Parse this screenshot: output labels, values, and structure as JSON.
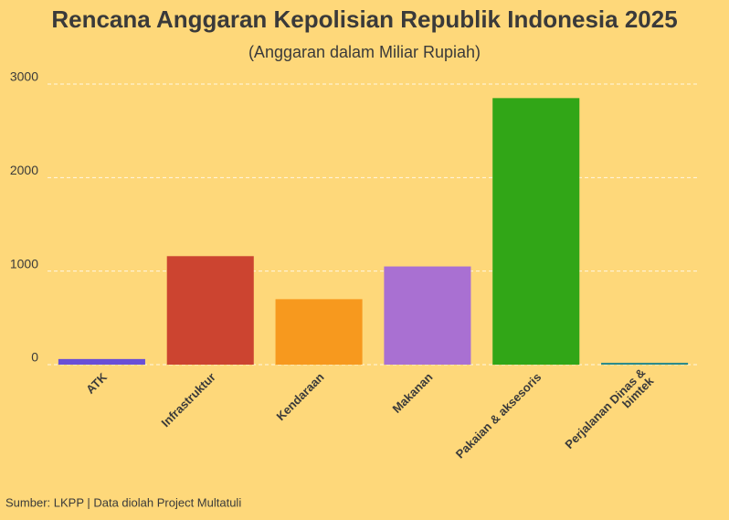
{
  "chart_data": {
    "type": "bar",
    "title": "Rencana Anggaran Kepolisian Republik Indonesia 2025",
    "subtitle": "(Anggaran dalam Miliar Rupiah)",
    "categories": [
      "ATK",
      "Infrastruktur",
      "Kendaraan",
      "Makanan",
      "Pakaian & aksesoris",
      "Perjalanan Dinas &\nbimtek"
    ],
    "values": [
      60,
      1160,
      700,
      1050,
      2850,
      20
    ],
    "colors": [
      "#6a4fd6",
      "#cc4430",
      "#f7991e",
      "#a970d2",
      "#31a617",
      "#2b8a8a"
    ],
    "ylim": [
      0,
      3000
    ],
    "yticks": [
      0,
      1000,
      2000,
      3000
    ],
    "grid": true,
    "source": "Sumber: LKPP | Data diolah Project Multatuli"
  }
}
